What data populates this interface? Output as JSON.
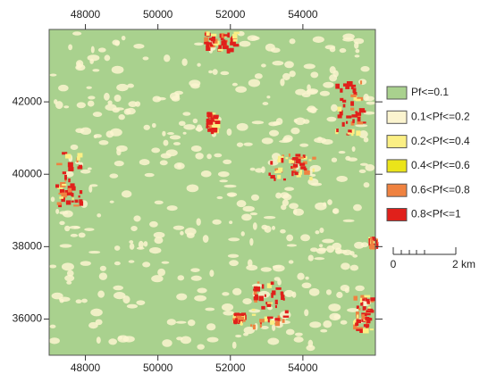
{
  "map": {
    "xlim": [
      47000,
      56000
    ],
    "ylim": [
      35000,
      44000
    ],
    "xticks": [
      48000,
      50000,
      52000,
      54000
    ],
    "yticks": [
      36000,
      38000,
      40000,
      42000
    ],
    "legend": [
      {
        "label": "Pf<=0.1",
        "color": "#a9d18e"
      },
      {
        "label": "0.1<Pf<=0.2",
        "color": "#fbf4cf"
      },
      {
        "label": "0.2<Pf<=0.4",
        "color": "#fbef84"
      },
      {
        "label": "0.4<Pf<=0.6",
        "color": "#ebe41a"
      },
      {
        "label": "0.6<Pf<=0.8",
        "color": "#ef8240"
      },
      {
        "label": "0.8<Pf<=1",
        "color": "#e0201b"
      }
    ],
    "scale_bar": {
      "start": "0",
      "end": "2 km"
    }
  }
}
